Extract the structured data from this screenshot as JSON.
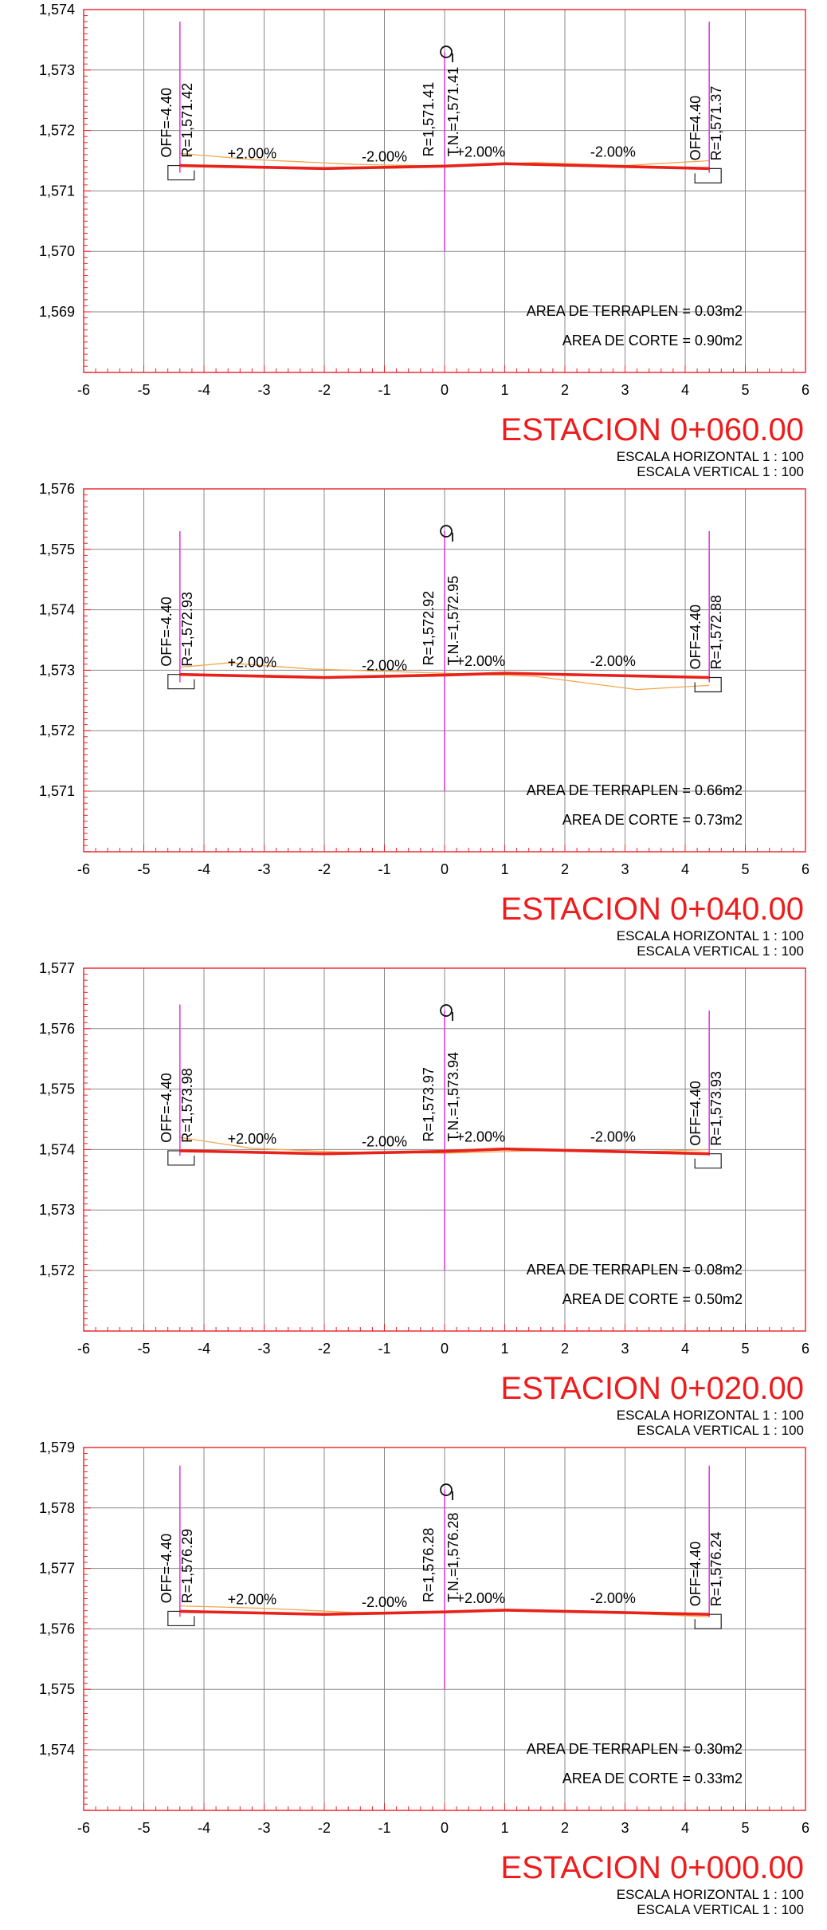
{
  "scale_h": "ESCALA HORIZONTAL 1 : 100",
  "scale_v": "ESCALA VERTICAL 1 : 100",
  "colors": {
    "frame": "#e8212a",
    "grid": "#8a8a8a",
    "road": "#e8211a",
    "terrain": "#f4a64a",
    "marker": "#e23fe2",
    "title": "#ee1c1c",
    "text": "#000000"
  },
  "x_ticks": [
    "-6",
    "-5",
    "-4",
    "-3",
    "-2",
    "-1",
    "0",
    "1",
    "2",
    "3",
    "4",
    "5",
    "6"
  ],
  "sections": [
    {
      "station": "ESTACION 0+060.00",
      "y_ticks": [
        "1,574",
        "1,573",
        "1,572",
        "1,571",
        "1,570",
        "1,569"
      ],
      "ymax": 1574,
      "ymin": 1568,
      "off_left": "OFF=-4.40",
      "off_right": "OFF=4.40",
      "r_left": "R=1,571.42",
      "r_center": "R=1,571.41",
      "r_right": "R=1,571.37",
      "tn": "T.N.=1,571.41",
      "slopes": [
        "+2.00%",
        "-2.00%",
        "+2.00%",
        "-2.00%"
      ],
      "area_fill": "AREA DE TERRAPLEN = 0.03m2",
      "area_cut": "AREA DE CORTE = 0.90m2",
      "road": [
        [
          -4.4,
          1571.42
        ],
        [
          -2.0,
          1571.37
        ],
        [
          0.0,
          1571.41
        ],
        [
          1.0,
          1571.45
        ],
        [
          4.4,
          1571.37
        ]
      ],
      "terrain": [
        [
          -4.4,
          1571.62
        ],
        [
          -3.2,
          1571.52
        ],
        [
          -1.5,
          1571.44
        ],
        [
          0.0,
          1571.41
        ],
        [
          1.5,
          1571.47
        ],
        [
          3.0,
          1571.42
        ],
        [
          4.4,
          1571.5
        ]
      ],
      "centerline": [
        1570.0,
        1573.3
      ],
      "edge_left": [
        1571.3,
        1573.8
      ],
      "edge_right": [
        1571.3,
        1573.8
      ]
    },
    {
      "station": "ESTACION 0+040.00",
      "y_ticks": [
        "1,576",
        "1,575",
        "1,574",
        "1,573",
        "1,572",
        "1,571"
      ],
      "ymax": 1576,
      "ymin": 1570,
      "off_left": "OFF=-4.40",
      "off_right": "OFF=4.40",
      "r_left": "R=1,572.93",
      "r_center": "R=1,572.92",
      "r_right": "R=1,572.88",
      "tn": "T.N.=1,572.95",
      "slopes": [
        "+2.00%",
        "-2.00%",
        "+2.00%",
        "-2.00%"
      ],
      "area_fill": "AREA DE TERRAPLEN = 0.66m2",
      "area_cut": "AREA DE CORTE = 0.73m2",
      "road": [
        [
          -4.4,
          1572.93
        ],
        [
          -2.0,
          1572.88
        ],
        [
          0.0,
          1572.92
        ],
        [
          1.0,
          1572.95
        ],
        [
          4.4,
          1572.88
        ]
      ],
      "terrain": [
        [
          -4.4,
          1573.05
        ],
        [
          -3.6,
          1573.12
        ],
        [
          -2.2,
          1573.02
        ],
        [
          0.0,
          1572.95
        ],
        [
          1.5,
          1572.9
        ],
        [
          3.2,
          1572.68
        ],
        [
          4.4,
          1572.75
        ]
      ],
      "centerline": [
        1571.0,
        1575.3
      ],
      "edge_left": [
        1572.8,
        1575.3
      ],
      "edge_right": [
        1572.8,
        1575.3
      ]
    },
    {
      "station": "ESTACION 0+020.00",
      "y_ticks": [
        "1,577",
        "1,576",
        "1,575",
        "1,574",
        "1,573",
        "1,572"
      ],
      "ymax": 1577,
      "ymin": 1571,
      "off_left": "OFF=-4.40",
      "off_right": "OFF=4.40",
      "r_left": "R=1,573.98",
      "r_center": "R=1,573.97",
      "r_right": "R=1,573.93",
      "tn": "T.N.=1,573.94",
      "slopes": [
        "+2.00%",
        "-2.00%",
        "+2.00%",
        "-2.00%"
      ],
      "area_fill": "AREA DE TERRAPLEN = 0.08m2",
      "area_cut": "AREA DE CORTE = 0.50m2",
      "road": [
        [
          -4.4,
          1573.98
        ],
        [
          -2.0,
          1573.93
        ],
        [
          0.0,
          1573.97
        ],
        [
          1.0,
          1574.01
        ],
        [
          4.4,
          1573.93
        ]
      ],
      "terrain": [
        [
          -4.4,
          1574.2
        ],
        [
          -3.2,
          1574.02
        ],
        [
          -1.8,
          1573.96
        ],
        [
          0.0,
          1573.94
        ],
        [
          1.5,
          1573.98
        ],
        [
          3.2,
          1573.96
        ],
        [
          4.4,
          1574.0
        ]
      ],
      "centerline": [
        1572.0,
        1576.3
      ],
      "edge_left": [
        1573.9,
        1576.4
      ],
      "edge_right": [
        1573.9,
        1576.3
      ]
    },
    {
      "station": "ESTACION 0+000.00",
      "y_ticks": [
        "1,579",
        "1,578",
        "1,577",
        "1,576",
        "1,575",
        "1,574"
      ],
      "ymax": 1579,
      "ymin": 1573,
      "off_left": "OFF=-4.40",
      "off_right": "OFF=4.40",
      "r_left": "R=1,576.29",
      "r_center": "R=1,576.28",
      "r_right": "R=1,576.24",
      "tn": "T.N.=1,576.28",
      "slopes": [
        "+2.00%",
        "-2.00%",
        "+2.00%",
        "-2.00%"
      ],
      "area_fill": "AREA DE TERRAPLEN = 0.30m2",
      "area_cut": "AREA DE CORTE = 0.33m2",
      "road": [
        [
          -4.4,
          1576.29
        ],
        [
          -2.0,
          1576.24
        ],
        [
          0.0,
          1576.28
        ],
        [
          1.0,
          1576.31
        ],
        [
          4.4,
          1576.24
        ]
      ],
      "terrain": [
        [
          -4.4,
          1576.38
        ],
        [
          -3.0,
          1576.34
        ],
        [
          -1.5,
          1576.27
        ],
        [
          0.0,
          1576.28
        ],
        [
          1.5,
          1576.3
        ],
        [
          3.2,
          1576.25
        ],
        [
          4.4,
          1576.2
        ]
      ],
      "centerline": [
        1575.0,
        1578.3
      ],
      "edge_left": [
        1576.2,
        1578.7
      ],
      "edge_right": [
        1576.2,
        1578.7
      ]
    }
  ]
}
